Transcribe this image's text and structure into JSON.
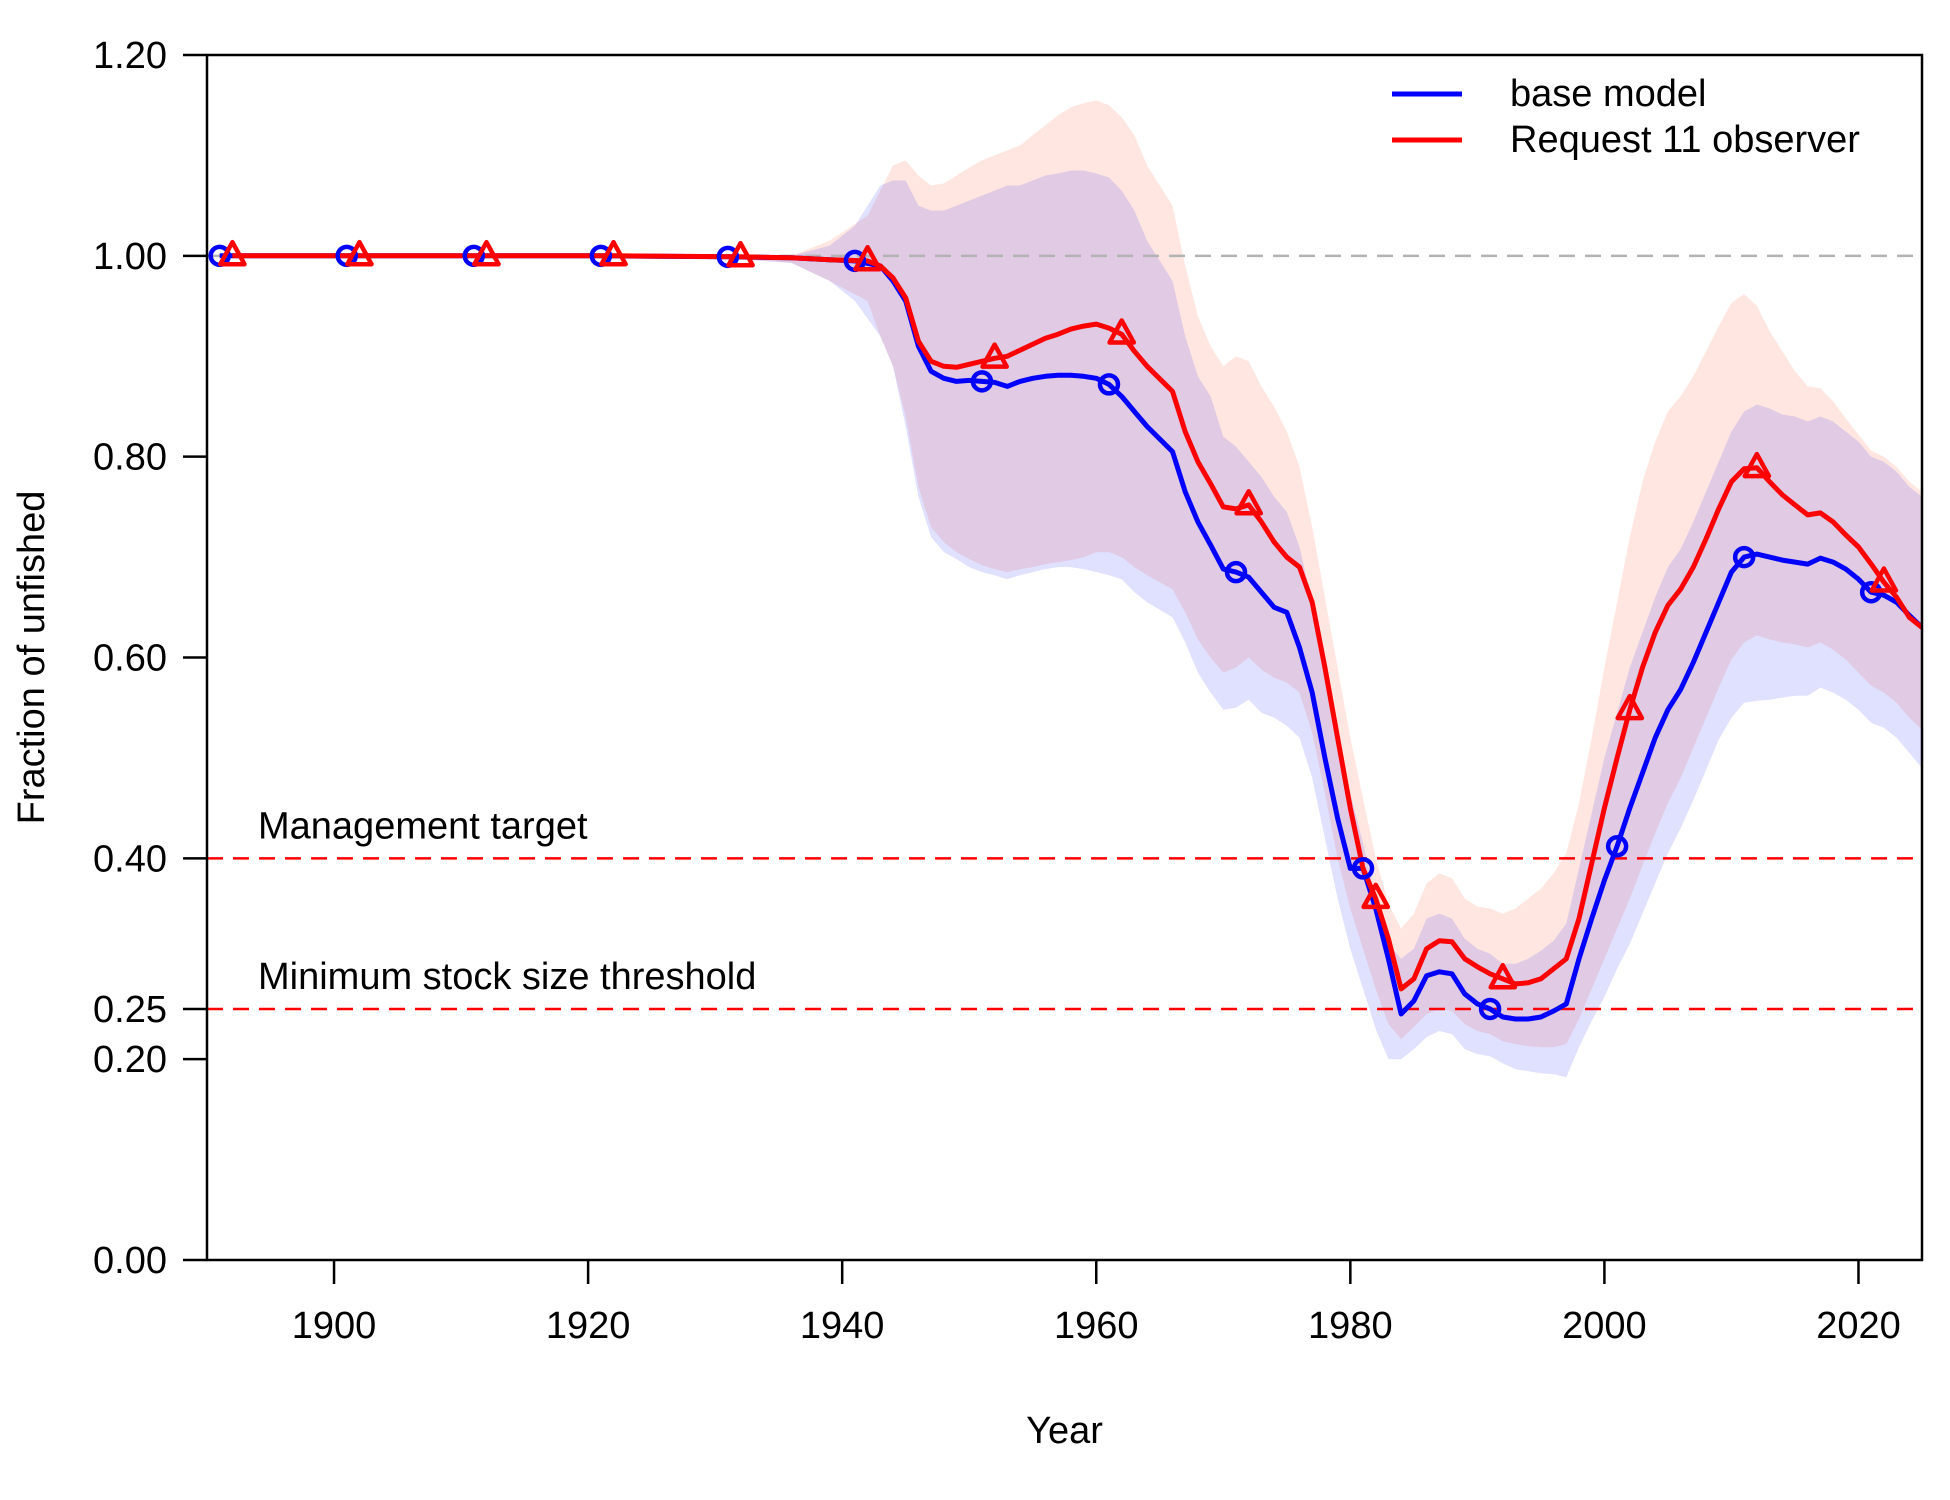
{
  "chart_data": {
    "type": "line",
    "xlabel": "Year",
    "ylabel": "Fraction of unfished",
    "xlim": [
      1890,
      2025
    ],
    "ylim": [
      0,
      1.2
    ],
    "x_ticks": [
      1900,
      1920,
      1940,
      1960,
      1980,
      2000,
      2020
    ],
    "y_ticks": [
      {
        "value": 0.0,
        "label": "0.00"
      },
      {
        "value": 0.2,
        "label": "0.20"
      },
      {
        "value": 0.25,
        "label": "0.25"
      },
      {
        "value": 0.4,
        "label": "0.40"
      },
      {
        "value": 0.6,
        "label": "0.60"
      },
      {
        "value": 0.8,
        "label": "0.80"
      },
      {
        "value": 1.0,
        "label": "1.00"
      },
      {
        "value": 1.2,
        "label": "1.20"
      }
    ],
    "reference_lines": [
      {
        "value": 1.0,
        "style": "dashed",
        "color": "#b3b3b3",
        "label": ""
      },
      {
        "value": 0.4,
        "style": "dashed",
        "color": "#ff0000",
        "label": "Management target"
      },
      {
        "value": 0.25,
        "style": "dashed",
        "color": "#ff0000",
        "label": "Minimum stock size threshold"
      }
    ],
    "legend_position": "top-right",
    "series": [
      {
        "name": "base model",
        "color": "#0000ff",
        "band_color": "#0000ff",
        "marker": "circle",
        "x": [
          1891,
          1901,
          1911,
          1921,
          1931,
          1936,
          1939,
          1941,
          1943,
          1944,
          1945,
          1946,
          1947,
          1948,
          1949,
          1950,
          1951,
          1952,
          1953,
          1954,
          1955,
          1956,
          1957,
          1958,
          1959,
          1960,
          1961,
          1962,
          1963,
          1964,
          1966,
          1967,
          1968,
          1969,
          1970,
          1971,
          1972,
          1973,
          1974,
          1975,
          1976,
          1977,
          1978,
          1979,
          1980,
          1981,
          1982,
          1983,
          1984,
          1985,
          1986,
          1987,
          1988,
          1989,
          1990,
          1991,
          1992,
          1993,
          1994,
          1995,
          1996,
          1997,
          1998,
          1999,
          2000,
          2001,
          2002,
          2003,
          2004,
          2005,
          2006,
          2007,
          2008,
          2009,
          2010,
          2011,
          2012,
          2013,
          2014,
          2015,
          2016,
          2017,
          2018,
          2019,
          2020,
          2021,
          2022,
          2023,
          2024,
          2025
        ],
        "y": [
          1.0,
          1.0,
          1.0,
          1.0,
          0.999,
          0.998,
          0.996,
          0.995,
          0.99,
          0.975,
          0.955,
          0.91,
          0.885,
          0.878,
          0.875,
          0.876,
          0.875,
          0.874,
          0.87,
          0.875,
          0.878,
          0.88,
          0.881,
          0.881,
          0.88,
          0.878,
          0.872,
          0.86,
          0.845,
          0.83,
          0.805,
          0.765,
          0.735,
          0.712,
          0.688,
          0.685,
          0.68,
          0.665,
          0.65,
          0.645,
          0.61,
          0.565,
          0.5,
          0.44,
          0.39,
          0.39,
          0.35,
          0.3,
          0.245,
          0.258,
          0.283,
          0.287,
          0.285,
          0.265,
          0.255,
          0.25,
          0.242,
          0.24,
          0.24,
          0.242,
          0.248,
          0.255,
          0.3,
          0.34,
          0.378,
          0.412,
          0.45,
          0.485,
          0.52,
          0.548,
          0.568,
          0.595,
          0.625,
          0.655,
          0.685,
          0.7,
          0.703,
          0.7,
          0.697,
          0.695,
          0.693,
          0.699,
          0.695,
          0.688,
          0.678,
          0.665,
          0.662,
          0.655,
          0.642,
          0.63
        ],
        "lower": [
          0.998,
          0.998,
          0.998,
          0.998,
          0.997,
          0.993,
          0.975,
          0.955,
          0.92,
          0.89,
          0.83,
          0.76,
          0.72,
          0.705,
          0.698,
          0.69,
          0.685,
          0.682,
          0.678,
          0.682,
          0.685,
          0.688,
          0.69,
          0.69,
          0.688,
          0.685,
          0.682,
          0.678,
          0.665,
          0.655,
          0.64,
          0.615,
          0.585,
          0.565,
          0.548,
          0.55,
          0.558,
          0.545,
          0.54,
          0.532,
          0.52,
          0.48,
          0.42,
          0.36,
          0.31,
          0.27,
          0.23,
          0.2,
          0.2,
          0.21,
          0.222,
          0.228,
          0.225,
          0.21,
          0.205,
          0.203,
          0.196,
          0.19,
          0.188,
          0.186,
          0.185,
          0.182,
          0.212,
          0.238,
          0.262,
          0.29,
          0.315,
          0.345,
          0.375,
          0.405,
          0.43,
          0.458,
          0.488,
          0.518,
          0.54,
          0.555,
          0.557,
          0.558,
          0.56,
          0.562,
          0.562,
          0.57,
          0.565,
          0.558,
          0.548,
          0.535,
          0.53,
          0.52,
          0.505,
          0.49
        ],
        "upper": [
          1.002,
          1.002,
          1.002,
          1.002,
          1.001,
          1.0,
          1.01,
          1.03,
          1.07,
          1.075,
          1.075,
          1.05,
          1.045,
          1.045,
          1.05,
          1.055,
          1.06,
          1.065,
          1.07,
          1.07,
          1.075,
          1.08,
          1.082,
          1.085,
          1.085,
          1.082,
          1.078,
          1.065,
          1.045,
          1.015,
          0.975,
          0.92,
          0.88,
          0.86,
          0.82,
          0.81,
          0.795,
          0.78,
          0.76,
          0.745,
          0.71,
          0.655,
          0.59,
          0.515,
          0.465,
          0.415,
          0.36,
          0.315,
          0.3,
          0.31,
          0.34,
          0.345,
          0.34,
          0.32,
          0.31,
          0.305,
          0.295,
          0.295,
          0.3,
          0.308,
          0.318,
          0.335,
          0.39,
          0.445,
          0.5,
          0.545,
          0.59,
          0.625,
          0.66,
          0.69,
          0.708,
          0.735,
          0.765,
          0.795,
          0.825,
          0.845,
          0.852,
          0.848,
          0.842,
          0.84,
          0.835,
          0.84,
          0.835,
          0.825,
          0.815,
          0.8,
          0.795,
          0.785,
          0.77,
          0.76
        ]
      },
      {
        "name": "Request 11 observer",
        "color": "#ff0000",
        "band_color": "#ff8c78",
        "marker": "triangle",
        "x": [
          1892,
          1902,
          1912,
          1922,
          1932,
          1936,
          1939,
          1942,
          1943,
          1944,
          1945,
          1946,
          1947,
          1948,
          1949,
          1950,
          1951,
          1952,
          1953,
          1954,
          1955,
          1956,
          1957,
          1958,
          1959,
          1960,
          1961,
          1962,
          1963,
          1964,
          1966,
          1967,
          1968,
          1969,
          1970,
          1971,
          1972,
          1973,
          1974,
          1975,
          1976,
          1977,
          1978,
          1979,
          1980,
          1981,
          1982,
          1983,
          1984,
          1985,
          1986,
          1987,
          1988,
          1989,
          1990,
          1991,
          1992,
          1993,
          1994,
          1995,
          1996,
          1997,
          1998,
          1999,
          2000,
          2001,
          2002,
          2003,
          2004,
          2005,
          2006,
          2007,
          2008,
          2009,
          2010,
          2011,
          2012,
          2013,
          2014,
          2015,
          2016,
          2017,
          2018,
          2019,
          2020,
          2021,
          2022,
          2023,
          2024,
          2025
        ],
        "y": [
          1.0,
          1.0,
          1.0,
          1.0,
          0.999,
          0.998,
          0.996,
          0.995,
          0.99,
          0.978,
          0.958,
          0.915,
          0.895,
          0.89,
          0.889,
          0.892,
          0.895,
          0.898,
          0.9,
          0.906,
          0.912,
          0.918,
          0.922,
          0.927,
          0.93,
          0.932,
          0.928,
          0.922,
          0.905,
          0.89,
          0.865,
          0.825,
          0.795,
          0.773,
          0.75,
          0.748,
          0.752,
          0.735,
          0.715,
          0.7,
          0.69,
          0.655,
          0.59,
          0.52,
          0.45,
          0.39,
          0.36,
          0.32,
          0.27,
          0.28,
          0.31,
          0.318,
          0.317,
          0.3,
          0.292,
          0.285,
          0.28,
          0.275,
          0.276,
          0.28,
          0.29,
          0.3,
          0.34,
          0.395,
          0.45,
          0.5,
          0.548,
          0.59,
          0.625,
          0.652,
          0.668,
          0.69,
          0.718,
          0.748,
          0.775,
          0.788,
          0.789,
          0.775,
          0.762,
          0.752,
          0.742,
          0.744,
          0.735,
          0.722,
          0.71,
          0.693,
          0.675,
          0.66,
          0.64,
          0.63
        ],
        "lower": [
          0.998,
          0.998,
          0.998,
          0.998,
          0.997,
          0.993,
          0.975,
          0.955,
          0.92,
          0.89,
          0.84,
          0.77,
          0.73,
          0.715,
          0.705,
          0.698,
          0.692,
          0.688,
          0.685,
          0.688,
          0.69,
          0.693,
          0.695,
          0.697,
          0.7,
          0.705,
          0.705,
          0.7,
          0.69,
          0.682,
          0.668,
          0.645,
          0.618,
          0.6,
          0.585,
          0.59,
          0.6,
          0.588,
          0.58,
          0.575,
          0.565,
          0.525,
          0.465,
          0.4,
          0.35,
          0.31,
          0.27,
          0.235,
          0.22,
          0.232,
          0.245,
          0.25,
          0.248,
          0.235,
          0.228,
          0.225,
          0.218,
          0.215,
          0.213,
          0.212,
          0.212,
          0.215,
          0.24,
          0.27,
          0.3,
          0.33,
          0.36,
          0.393,
          0.425,
          0.455,
          0.48,
          0.51,
          0.54,
          0.57,
          0.598,
          0.615,
          0.622,
          0.618,
          0.615,
          0.613,
          0.61,
          0.615,
          0.608,
          0.598,
          0.585,
          0.572,
          0.565,
          0.555,
          0.54,
          0.528
        ],
        "upper": [
          1.002,
          1.002,
          1.002,
          1.002,
          1.001,
          1.0,
          1.015,
          1.04,
          1.065,
          1.09,
          1.095,
          1.08,
          1.07,
          1.072,
          1.08,
          1.088,
          1.095,
          1.1,
          1.105,
          1.11,
          1.12,
          1.13,
          1.14,
          1.148,
          1.152,
          1.155,
          1.15,
          1.138,
          1.12,
          1.09,
          1.05,
          0.99,
          0.94,
          0.91,
          0.89,
          0.9,
          0.895,
          0.87,
          0.85,
          0.825,
          0.79,
          0.73,
          0.66,
          0.59,
          0.52,
          0.46,
          0.4,
          0.355,
          0.33,
          0.345,
          0.375,
          0.385,
          0.38,
          0.36,
          0.352,
          0.35,
          0.345,
          0.35,
          0.36,
          0.37,
          0.385,
          0.405,
          0.455,
          0.52,
          0.59,
          0.655,
          0.72,
          0.775,
          0.815,
          0.845,
          0.86,
          0.88,
          0.905,
          0.93,
          0.953,
          0.962,
          0.95,
          0.925,
          0.905,
          0.885,
          0.87,
          0.868,
          0.855,
          0.838,
          0.822,
          0.806,
          0.8,
          0.79,
          0.775,
          0.765
        ]
      }
    ]
  }
}
